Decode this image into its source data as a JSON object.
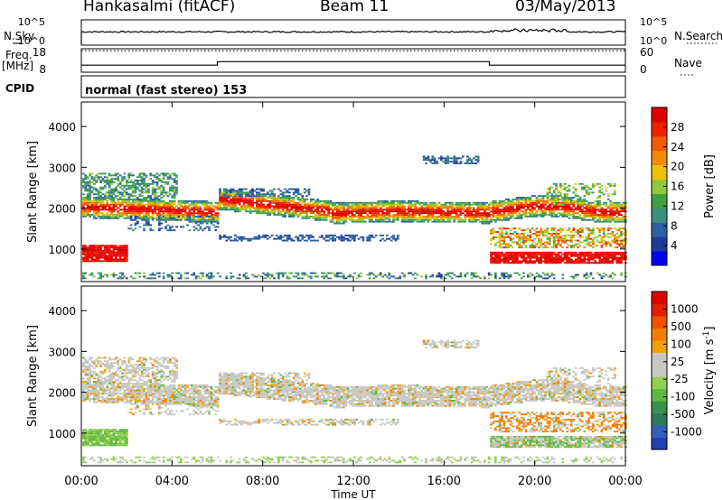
{
  "header": {
    "station": "Hankasalmi (fitACF)",
    "beam": "Beam 11",
    "date": "03/May/2013"
  },
  "left_labels": {
    "nsky": "N.Sky",
    "freq": "Freq.",
    "freq_unit": "[MHz]",
    "cpid": "CPID"
  },
  "right_labels": {
    "nsearch": "N.Search",
    "nave": "Nave"
  },
  "cpid_text": "normal (fast stereo) 153",
  "chart_data": [
    {
      "type": "line",
      "title": "",
      "ylabel_left": "N.Sky",
      "ylabel_right": "N.Search",
      "left_ticks": [
        "10^5",
        "10^0"
      ],
      "right_ticks": [
        "10^5",
        "10^0"
      ],
      "x": [
        0,
        24
      ],
      "values": "near-constant high noise level across the day"
    },
    {
      "type": "line",
      "ylabel": "Freq. [MHz]",
      "left_ticks": [
        "18",
        "8"
      ],
      "right_ticks": [
        "60",
        "0"
      ],
      "series": [
        {
          "name": "Freq.",
          "segments": [
            [
              0,
              6,
              11.0
            ],
            [
              6,
              18,
              12.5
            ],
            [
              18,
              24,
              11.0
            ]
          ]
        },
        {
          "name": "Nave",
          "value": 55
        }
      ]
    },
    {
      "type": "heatmap",
      "ylabel": "Slant Range [km]",
      "yticks": [
        1000,
        2000,
        3000,
        4000
      ],
      "ylim": [
        200,
        4600
      ],
      "xlim": [
        0,
        24
      ],
      "colorbar": {
        "label": "Power [dB]",
        "ticks": [
          "28",
          "24",
          "20",
          "16",
          "12",
          "8",
          "4"
        ],
        "colors": [
          "#0000ff",
          "#1e3c96",
          "#2d5fa5",
          "#3c8f7a",
          "#40a040",
          "#90c83c",
          "#f0c000",
          "#f08c00",
          "#f05a00",
          "#f02000",
          "#e00000"
        ]
      }
    },
    {
      "type": "heatmap",
      "ylabel": "Slant Range [km]",
      "yticks": [
        1000,
        2000,
        3000,
        4000
      ],
      "ylim": [
        200,
        4600
      ],
      "xlim": [
        0,
        24
      ],
      "xticks": [
        "00:00",
        "04:00",
        "08:00",
        "12:00",
        "16:00",
        "20:00",
        "00:00"
      ],
      "xlabel": "Time UT",
      "colorbar": {
        "label": "Velocity [m s",
        "label_sup": "-1",
        "label_end": "]",
        "ticks": [
          "1000",
          "500",
          "100",
          "25",
          "-25",
          "-100",
          "-500",
          "-1000"
        ],
        "colors": [
          "#2040b0",
          "#3060b8",
          "#2e7a5a",
          "#3c9050",
          "#60b840",
          "#90d050",
          "#c8c8c0",
          "#c8c8c0",
          "#f0a000",
          "#f08000",
          "#f05000",
          "#e02000",
          "#e00000"
        ]
      }
    }
  ]
}
